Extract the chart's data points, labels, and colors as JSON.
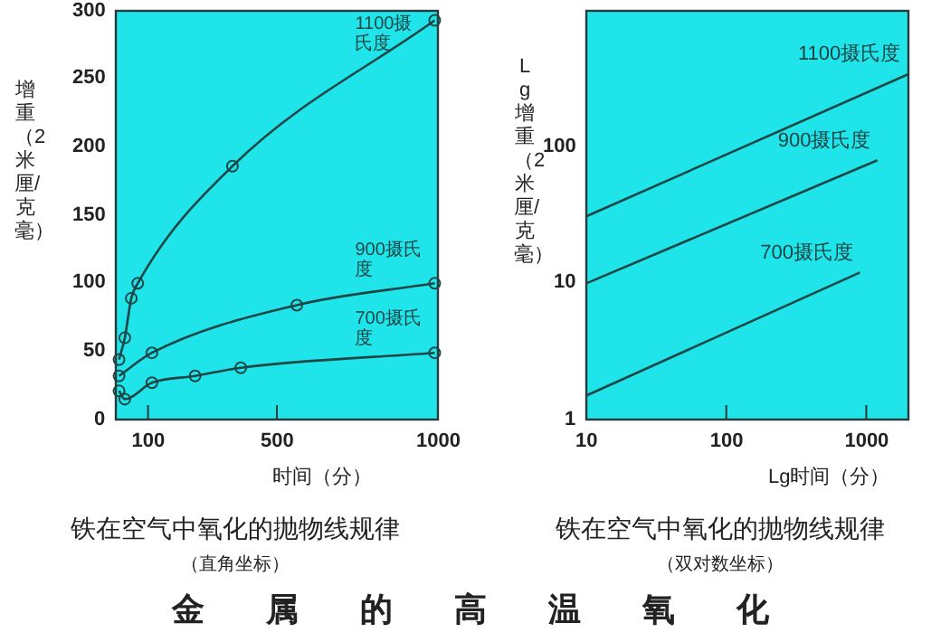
{
  "chart_data": [
    {
      "type": "line",
      "title": "铁在空气中氧化的抛物线规律",
      "subtitle": "（直角坐标）",
      "xlabel": "时间（分）",
      "ylabel": "增重（2米厘/克毫）",
      "annotations": [
        "金属的高温氧化"
      ],
      "marker": "circle",
      "xlim": [
        0,
        1000
      ],
      "xticks": [
        100,
        500,
        1000
      ],
      "ylim": [
        0,
        300
      ],
      "yticks": [
        0,
        50,
        100,
        150,
        200,
        250,
        300
      ],
      "series": [
        {
          "name": "1100摄氏度",
          "color": "#1e4646",
          "x": [
            10,
            28,
            48,
            68,
            362,
            990
          ],
          "values": [
            44,
            60,
            89,
            100,
            186,
            293
          ]
        },
        {
          "name": "900摄氏度",
          "color": "#1e4646",
          "x": [
            10,
            112,
            562,
            990
          ],
          "values": [
            32,
            49,
            84,
            100
          ]
        },
        {
          "name": "700摄氏度",
          "color": "#1e4646",
          "x": [
            10,
            28,
            112,
            246,
            388,
            990
          ],
          "values": [
            21,
            15,
            27,
            32,
            38,
            49
          ]
        }
      ]
    },
    {
      "type": "line",
      "title": "铁在空气中氧化的抛物线规律",
      "subtitle": "（双对数坐标）",
      "xlabel": "Lg时间（分）",
      "ylabel": "Lg增重（2米厘/克毫）",
      "log": "xy",
      "xlim": [
        10,
        2000
      ],
      "xticks": [
        10,
        100,
        1000
      ],
      "ylim": [
        1,
        1000
      ],
      "yticks": [
        1,
        10,
        100
      ],
      "series": [
        {
          "name": "1100摄氏度",
          "color": "#1e4646",
          "x": [
            10,
            2000
          ],
          "values": [
            31,
            343
          ]
        },
        {
          "name": "900摄氏度",
          "color": "#1e4646",
          "x": [
            10,
            1200
          ],
          "values": [
            10,
            80
          ]
        },
        {
          "name": "700摄氏度",
          "color": "#1e4646",
          "x": [
            10,
            900
          ],
          "values": [
            1.5,
            12
          ]
        }
      ]
    }
  ]
}
